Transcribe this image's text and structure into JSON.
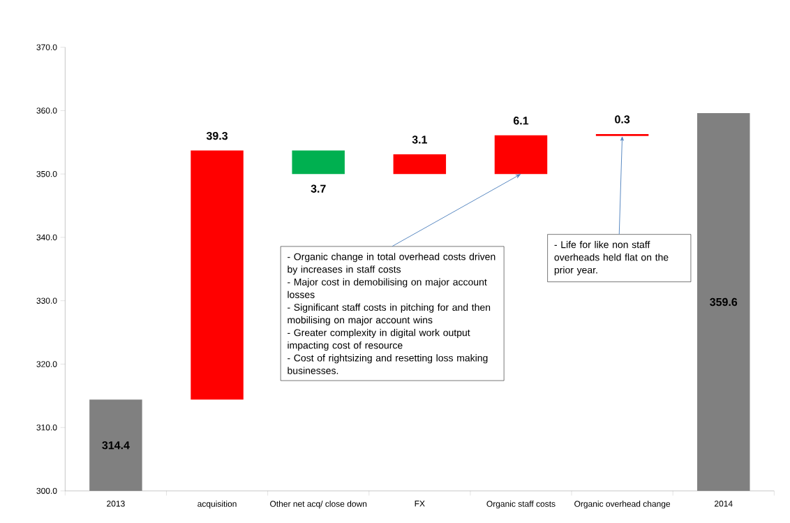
{
  "chart_data": {
    "type": "bar",
    "categories": [
      "2013",
      "acquisition",
      "Other net acq/ close down",
      "FX",
      "Organic staff costs",
      "Organic overhead change",
      "2014"
    ],
    "values": [
      14.4,
      39.3,
      -3.7,
      3.1,
      6.1,
      0.3,
      59.6
    ],
    "base": [
      300,
      314.4,
      353.7,
      350.0,
      350.0,
      356.0,
      300
    ],
    "colors": [
      "#808080",
      "#ff0000",
      "#00b050",
      "#ff0000",
      "#ff0000",
      "#ff0000",
      "#808080"
    ],
    "value_labels": [
      "314.4",
      "39.3",
      "3.7",
      "3.1",
      "6.1",
      "0.3",
      "359.6"
    ],
    "ylim": [
      300,
      370
    ],
    "yticks": [
      {
        "value": 300,
        "label": "300.0"
      },
      {
        "value": 310,
        "label": "310.0"
      },
      {
        "value": 320,
        "label": "320.0"
      },
      {
        "value": 330,
        "label": "330.0"
      },
      {
        "value": 340,
        "label": "340.0"
      },
      {
        "value": 350,
        "label": "350.0"
      },
      {
        "value": 360,
        "label": "360.0"
      },
      {
        "value": 370,
        "label": "370.0"
      }
    ],
    "annotations": [
      {
        "text": "- Organic change in total overhead costs driven by increases in staff costs",
        "x": "Organic staff costs",
        "y": 350.0
      },
      "- Major cost in demobilising on major account losses",
      "- Significant staff costs in pitching for and then mobilising on major account wins",
      "- Greater complexity in digital work output impacting cost of resource",
      "- Cost of rightsizing and resetting loss making businesses.",
      {
        "text": "- Life for like non staff overheads held flat on the prior year.",
        "x": "Organic overhead change",
        "y": 356.0
      }
    ]
  }
}
